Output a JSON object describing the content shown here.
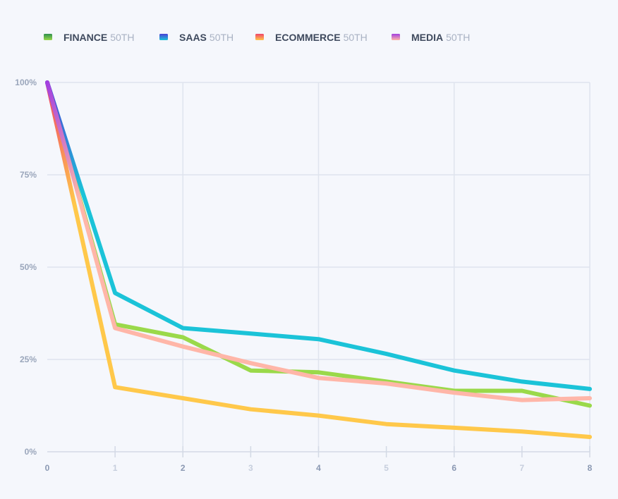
{
  "chart_data": {
    "type": "line",
    "title": "",
    "xlabel": "",
    "ylabel": "",
    "xlim": [
      0,
      8
    ],
    "ylim": [
      0,
      100
    ],
    "grid": true,
    "legend_position": "top-left",
    "x_ticks": [
      {
        "label": "0",
        "value": 0,
        "color": "#8a98b2"
      },
      {
        "label": "1",
        "value": 1,
        "color": "#c6cedd"
      },
      {
        "label": "2",
        "value": 2,
        "color": "#8a98b2"
      },
      {
        "label": "3",
        "value": 3,
        "color": "#c6cedd"
      },
      {
        "label": "4",
        "value": 4,
        "color": "#8a98b2"
      },
      {
        "label": "5",
        "value": 5,
        "color": "#c6cedd"
      },
      {
        "label": "6",
        "value": 6,
        "color": "#8a98b2"
      },
      {
        "label": "7",
        "value": 7,
        "color": "#c6cedd"
      },
      {
        "label": "8",
        "value": 8,
        "color": "#8a98b2"
      }
    ],
    "y_ticks": [
      {
        "label": "0%",
        "value": 0
      },
      {
        "label": "25%",
        "value": 25
      },
      {
        "label": "50%",
        "value": 50
      },
      {
        "label": "75%",
        "value": 75
      },
      {
        "label": "100%",
        "value": 100
      }
    ],
    "series": [
      {
        "name": "FINANCE",
        "suffix": "50TH",
        "gradient": [
          "#2f8f4e",
          "#9ad94a"
        ],
        "x": [
          0,
          1,
          2,
          3,
          4,
          5,
          6,
          7,
          8
        ],
        "values": [
          100,
          34.5,
          31,
          22,
          21.5,
          19,
          16.5,
          16.5,
          12.5
        ]
      },
      {
        "name": "SAAS",
        "suffix": "50TH",
        "gradient": [
          "#4a3fd6",
          "#1bc3d8"
        ],
        "x": [
          0,
          1,
          2,
          3,
          4,
          5,
          6,
          7,
          8
        ],
        "values": [
          100,
          43,
          33.5,
          32,
          30.5,
          26.5,
          22,
          19,
          17
        ]
      },
      {
        "name": "ECOMMERCE",
        "suffix": "50TH",
        "gradient": [
          "#f0446a",
          "#ffc84a"
        ],
        "x": [
          0,
          1,
          2,
          3,
          4,
          5,
          6,
          7,
          8
        ],
        "values": [
          100,
          17.5,
          14.5,
          11.5,
          9.8,
          7.5,
          6.5,
          5.5,
          4
        ]
      },
      {
        "name": "MEDIA",
        "suffix": "50TH",
        "gradient": [
          "#a33fe0",
          "#ffb6a8"
        ],
        "x": [
          0,
          1,
          2,
          3,
          4,
          5,
          6,
          7,
          8
        ],
        "values": [
          100,
          33.5,
          28.5,
          24,
          20,
          18.5,
          16,
          14,
          14.5
        ]
      }
    ]
  }
}
